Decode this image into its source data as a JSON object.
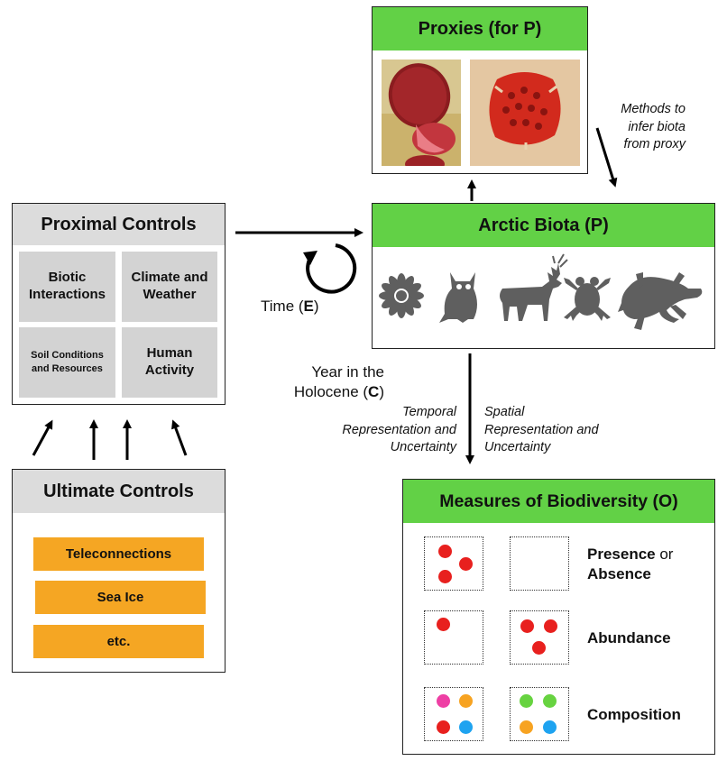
{
  "proxies": {
    "title": "Proxies (for P)"
  },
  "methods_label": [
    "Methods to",
    "infer biota",
    "from proxy"
  ],
  "arctic_biota": {
    "title": "Arctic Biota (P)",
    "icons": [
      "flower-icon",
      "owl-icon",
      "deer-icon",
      "frog-icon",
      "lizard-icon"
    ]
  },
  "proximal_controls": {
    "title": "Proximal Controls",
    "cells": [
      {
        "line1": "Biotic",
        "line2": "Interactions"
      },
      {
        "line1": "Climate and",
        "line2": "Weather"
      },
      {
        "line1": "Soil Conditions",
        "line2": "and Resources"
      },
      {
        "line1": "Human",
        "line2": "Activity"
      }
    ]
  },
  "time_label": {
    "text": "Time (",
    "bold": "E",
    "close": ")"
  },
  "year_label": {
    "line1": "Year in the",
    "line2": "Holocene (",
    "bold": "C",
    "close": ")"
  },
  "temporal_label": [
    "Temporal",
    "Representation and",
    "Uncertainty"
  ],
  "spatial_label": [
    "Spatial",
    "Representation and",
    "Uncertainty"
  ],
  "ultimate_controls": {
    "title": "Ultimate Controls",
    "items": [
      "Teleconnections",
      "Sea Ice",
      "etc."
    ]
  },
  "biodiversity": {
    "title": "Measures of Biodiversity (O)",
    "rows": [
      {
        "bold1": "Presence",
        "plain": " or",
        "bold2": "Absence"
      },
      {
        "bold1": "Abundance"
      },
      {
        "bold1": "Composition"
      }
    ]
  },
  "colors": {
    "green_header": "#62d146",
    "gray_header": "#dcdcdc",
    "cell_gray": "#d3d3d3",
    "orange": "#f5a623",
    "icon_gray": "#5f5f5f",
    "dot_red": "#e8201e",
    "dot_pink": "#ee3fa4",
    "dot_orange": "#f7a321",
    "dot_blue": "#1ea3f0",
    "dot_green": "#67d340"
  }
}
